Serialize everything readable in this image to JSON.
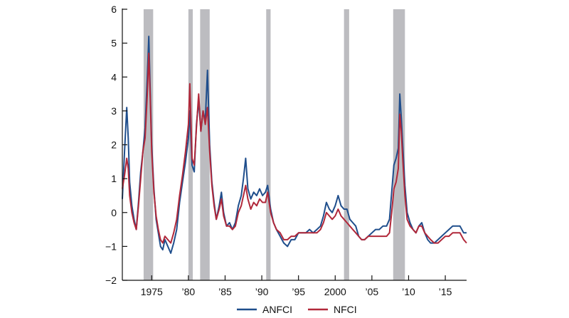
{
  "chart_data": {
    "type": "line",
    "title": "",
    "xlabel": "",
    "ylabel": "",
    "xlim": [
      1971.0,
      2017.9
    ],
    "ylim": [
      -2,
      6
    ],
    "y_ticks": [
      {
        "value": 6,
        "label": "6"
      },
      {
        "value": 5,
        "label": "5"
      },
      {
        "value": 4,
        "label": "4"
      },
      {
        "value": 3,
        "label": "3"
      },
      {
        "value": 2,
        "label": "2"
      },
      {
        "value": 1,
        "label": "1"
      },
      {
        "value": 0,
        "label": "0"
      },
      {
        "value": -1,
        "label": "−1"
      },
      {
        "value": -2,
        "label": "−2"
      }
    ],
    "x_ticks": [
      {
        "value": 1975,
        "label": "1975"
      },
      {
        "value": 1980,
        "label": "’80"
      },
      {
        "value": 1985,
        "label": "’85"
      },
      {
        "value": 1990,
        "label": "’90"
      },
      {
        "value": 1995,
        "label": "’95"
      },
      {
        "value": 2000,
        "label": "2000"
      },
      {
        "value": 2005,
        "label": "’05"
      },
      {
        "value": 2010,
        "label": "’10"
      },
      {
        "value": 2015,
        "label": "’15"
      }
    ],
    "recession_bands": [
      [
        1973.9,
        1975.2
      ],
      [
        1980.0,
        1980.6
      ],
      [
        1981.6,
        1982.9
      ],
      [
        1990.6,
        1991.2
      ],
      [
        2001.2,
        2001.9
      ],
      [
        2007.9,
        2009.5
      ]
    ],
    "legend_position": "bottom-center",
    "series": [
      {
        "name": "ANFCI",
        "color": "#1f4e8c",
        "points": [
          [
            1971.0,
            0.4
          ],
          [
            1971.3,
            1.8
          ],
          [
            1971.6,
            3.1
          ],
          [
            1971.8,
            2.2
          ],
          [
            1972.0,
            0.9
          ],
          [
            1972.3,
            0.2
          ],
          [
            1972.6,
            -0.2
          ],
          [
            1972.9,
            -0.5
          ],
          [
            1973.2,
            0.3
          ],
          [
            1973.5,
            1.2
          ],
          [
            1973.8,
            1.8
          ],
          [
            1974.1,
            2.5
          ],
          [
            1974.4,
            4.0
          ],
          [
            1974.6,
            5.2
          ],
          [
            1974.8,
            3.6
          ],
          [
            1975.0,
            2.0
          ],
          [
            1975.3,
            0.7
          ],
          [
            1975.6,
            -0.2
          ],
          [
            1975.9,
            -0.6
          ],
          [
            1976.2,
            -1.0
          ],
          [
            1976.5,
            -1.1
          ],
          [
            1976.8,
            -0.8
          ],
          [
            1977.2,
            -1.0
          ],
          [
            1977.6,
            -1.2
          ],
          [
            1978.0,
            -0.9
          ],
          [
            1978.4,
            -0.5
          ],
          [
            1978.8,
            0.3
          ],
          [
            1979.2,
            0.9
          ],
          [
            1979.6,
            1.5
          ],
          [
            1980.0,
            2.2
          ],
          [
            1980.2,
            3.0
          ],
          [
            1980.5,
            1.4
          ],
          [
            1980.8,
            1.2
          ],
          [
            1981.1,
            2.6
          ],
          [
            1981.4,
            3.3
          ],
          [
            1981.7,
            2.4
          ],
          [
            1982.0,
            3.0
          ],
          [
            1982.3,
            2.7
          ],
          [
            1982.6,
            4.2
          ],
          [
            1982.9,
            2.0
          ],
          [
            1983.2,
            0.9
          ],
          [
            1983.5,
            0.3
          ],
          [
            1983.8,
            -0.2
          ],
          [
            1984.2,
            0.2
          ],
          [
            1984.5,
            0.6
          ],
          [
            1984.8,
            0.0
          ],
          [
            1985.2,
            -0.4
          ],
          [
            1985.6,
            -0.3
          ],
          [
            1986.0,
            -0.5
          ],
          [
            1986.4,
            -0.3
          ],
          [
            1986.8,
            0.2
          ],
          [
            1987.2,
            0.5
          ],
          [
            1987.5,
            1.0
          ],
          [
            1987.8,
            1.6
          ],
          [
            1988.1,
            0.7
          ],
          [
            1988.5,
            0.4
          ],
          [
            1988.9,
            0.6
          ],
          [
            1989.3,
            0.5
          ],
          [
            1989.7,
            0.7
          ],
          [
            1990.1,
            0.5
          ],
          [
            1990.5,
            0.6
          ],
          [
            1990.8,
            0.8
          ],
          [
            1991.2,
            0.1
          ],
          [
            1991.6,
            -0.3
          ],
          [
            1992.0,
            -0.5
          ],
          [
            1992.5,
            -0.7
          ],
          [
            1993.0,
            -0.9
          ],
          [
            1993.5,
            -1.0
          ],
          [
            1994.0,
            -0.8
          ],
          [
            1994.5,
            -0.8
          ],
          [
            1995.0,
            -0.6
          ],
          [
            1995.5,
            -0.6
          ],
          [
            1996.0,
            -0.6
          ],
          [
            1996.5,
            -0.5
          ],
          [
            1997.0,
            -0.6
          ],
          [
            1997.5,
            -0.5
          ],
          [
            1998.0,
            -0.4
          ],
          [
            1998.4,
            -0.1
          ],
          [
            1998.8,
            0.3
          ],
          [
            1999.2,
            0.1
          ],
          [
            1999.6,
            0.0
          ],
          [
            2000.0,
            0.2
          ],
          [
            2000.4,
            0.5
          ],
          [
            2000.8,
            0.2
          ],
          [
            2001.2,
            0.1
          ],
          [
            2001.6,
            0.1
          ],
          [
            2002.0,
            -0.2
          ],
          [
            2002.4,
            -0.3
          ],
          [
            2002.8,
            -0.4
          ],
          [
            2003.2,
            -0.7
          ],
          [
            2003.6,
            -0.8
          ],
          [
            2004.0,
            -0.8
          ],
          [
            2004.5,
            -0.7
          ],
          [
            2005.0,
            -0.6
          ],
          [
            2005.5,
            -0.5
          ],
          [
            2006.0,
            -0.5
          ],
          [
            2006.5,
            -0.4
          ],
          [
            2007.0,
            -0.4
          ],
          [
            2007.4,
            -0.2
          ],
          [
            2007.7,
            0.6
          ],
          [
            2008.0,
            1.4
          ],
          [
            2008.3,
            1.6
          ],
          [
            2008.6,
            1.9
          ],
          [
            2008.8,
            3.5
          ],
          [
            2009.0,
            2.8
          ],
          [
            2009.2,
            2.0
          ],
          [
            2009.5,
            0.8
          ],
          [
            2009.8,
            0.0
          ],
          [
            2010.2,
            -0.3
          ],
          [
            2010.6,
            -0.5
          ],
          [
            2011.0,
            -0.6
          ],
          [
            2011.4,
            -0.4
          ],
          [
            2011.8,
            -0.3
          ],
          [
            2012.2,
            -0.6
          ],
          [
            2012.6,
            -0.8
          ],
          [
            2013.0,
            -0.9
          ],
          [
            2013.5,
            -0.9
          ],
          [
            2014.0,
            -0.8
          ],
          [
            2014.5,
            -0.7
          ],
          [
            2015.0,
            -0.6
          ],
          [
            2015.5,
            -0.5
          ],
          [
            2016.0,
            -0.4
          ],
          [
            2016.5,
            -0.4
          ],
          [
            2017.0,
            -0.4
          ],
          [
            2017.5,
            -0.6
          ],
          [
            2017.9,
            -0.6
          ]
        ]
      },
      {
        "name": "NFCI",
        "color": "#b1283a",
        "points": [
          [
            1971.0,
            0.7
          ],
          [
            1971.3,
            1.1
          ],
          [
            1971.6,
            1.6
          ],
          [
            1971.8,
            1.3
          ],
          [
            1972.0,
            0.5
          ],
          [
            1972.3,
            0.0
          ],
          [
            1972.6,
            -0.3
          ],
          [
            1972.9,
            -0.5
          ],
          [
            1973.2,
            0.2
          ],
          [
            1973.5,
            1.0
          ],
          [
            1973.8,
            1.8
          ],
          [
            1974.1,
            2.2
          ],
          [
            1974.4,
            3.5
          ],
          [
            1974.6,
            4.7
          ],
          [
            1974.8,
            3.4
          ],
          [
            1975.0,
            1.8
          ],
          [
            1975.3,
            0.6
          ],
          [
            1975.6,
            -0.1
          ],
          [
            1975.9,
            -0.5
          ],
          [
            1976.2,
            -0.8
          ],
          [
            1976.5,
            -0.9
          ],
          [
            1976.8,
            -0.7
          ],
          [
            1977.2,
            -0.8
          ],
          [
            1977.6,
            -0.9
          ],
          [
            1978.0,
            -0.6
          ],
          [
            1978.4,
            -0.2
          ],
          [
            1978.8,
            0.5
          ],
          [
            1979.2,
            1.1
          ],
          [
            1979.6,
            1.8
          ],
          [
            1980.0,
            2.6
          ],
          [
            1980.2,
            3.8
          ],
          [
            1980.5,
            1.6
          ],
          [
            1980.8,
            1.4
          ],
          [
            1981.1,
            2.5
          ],
          [
            1981.4,
            3.5
          ],
          [
            1981.7,
            2.4
          ],
          [
            1982.0,
            3.0
          ],
          [
            1982.3,
            2.6
          ],
          [
            1982.6,
            3.1
          ],
          [
            1982.9,
            1.8
          ],
          [
            1983.2,
            0.8
          ],
          [
            1983.5,
            0.2
          ],
          [
            1983.8,
            -0.2
          ],
          [
            1984.2,
            0.1
          ],
          [
            1984.5,
            0.4
          ],
          [
            1984.8,
            -0.1
          ],
          [
            1985.2,
            -0.4
          ],
          [
            1985.6,
            -0.4
          ],
          [
            1986.0,
            -0.5
          ],
          [
            1986.4,
            -0.4
          ],
          [
            1986.8,
            0.0
          ],
          [
            1987.2,
            0.2
          ],
          [
            1987.5,
            0.5
          ],
          [
            1987.8,
            0.8
          ],
          [
            1988.1,
            0.4
          ],
          [
            1988.5,
            0.1
          ],
          [
            1988.9,
            0.3
          ],
          [
            1989.3,
            0.2
          ],
          [
            1989.7,
            0.4
          ],
          [
            1990.1,
            0.3
          ],
          [
            1990.5,
            0.3
          ],
          [
            1990.8,
            0.6
          ],
          [
            1991.2,
            0.0
          ],
          [
            1991.6,
            -0.3
          ],
          [
            1992.0,
            -0.5
          ],
          [
            1992.5,
            -0.6
          ],
          [
            1993.0,
            -0.8
          ],
          [
            1993.5,
            -0.8
          ],
          [
            1994.0,
            -0.7
          ],
          [
            1994.5,
            -0.7
          ],
          [
            1995.0,
            -0.6
          ],
          [
            1995.5,
            -0.6
          ],
          [
            1996.0,
            -0.6
          ],
          [
            1996.5,
            -0.6
          ],
          [
            1997.0,
            -0.6
          ],
          [
            1997.5,
            -0.6
          ],
          [
            1998.0,
            -0.5
          ],
          [
            1998.4,
            -0.3
          ],
          [
            1998.8,
            0.0
          ],
          [
            1999.2,
            -0.1
          ],
          [
            1999.6,
            -0.2
          ],
          [
            2000.0,
            -0.1
          ],
          [
            2000.4,
            0.1
          ],
          [
            2000.8,
            -0.1
          ],
          [
            2001.2,
            -0.2
          ],
          [
            2001.6,
            -0.3
          ],
          [
            2002.0,
            -0.4
          ],
          [
            2002.4,
            -0.5
          ],
          [
            2002.8,
            -0.6
          ],
          [
            2003.2,
            -0.7
          ],
          [
            2003.6,
            -0.8
          ],
          [
            2004.0,
            -0.8
          ],
          [
            2004.5,
            -0.7
          ],
          [
            2005.0,
            -0.7
          ],
          [
            2005.5,
            -0.7
          ],
          [
            2006.0,
            -0.7
          ],
          [
            2006.5,
            -0.7
          ],
          [
            2007.0,
            -0.7
          ],
          [
            2007.4,
            -0.6
          ],
          [
            2007.7,
            0.0
          ],
          [
            2008.0,
            0.7
          ],
          [
            2008.3,
            0.9
          ],
          [
            2008.6,
            1.3
          ],
          [
            2008.8,
            2.9
          ],
          [
            2009.0,
            2.4
          ],
          [
            2009.2,
            1.6
          ],
          [
            2009.5,
            0.5
          ],
          [
            2009.8,
            -0.2
          ],
          [
            2010.2,
            -0.4
          ],
          [
            2010.6,
            -0.5
          ],
          [
            2011.0,
            -0.6
          ],
          [
            2011.4,
            -0.4
          ],
          [
            2011.8,
            -0.4
          ],
          [
            2012.2,
            -0.6
          ],
          [
            2012.6,
            -0.7
          ],
          [
            2013.0,
            -0.8
          ],
          [
            2013.5,
            -0.9
          ],
          [
            2014.0,
            -0.9
          ],
          [
            2014.5,
            -0.8
          ],
          [
            2015.0,
            -0.7
          ],
          [
            2015.5,
            -0.7
          ],
          [
            2016.0,
            -0.6
          ],
          [
            2016.5,
            -0.6
          ],
          [
            2017.0,
            -0.6
          ],
          [
            2017.5,
            -0.8
          ],
          [
            2017.9,
            -0.9
          ]
        ]
      }
    ]
  }
}
